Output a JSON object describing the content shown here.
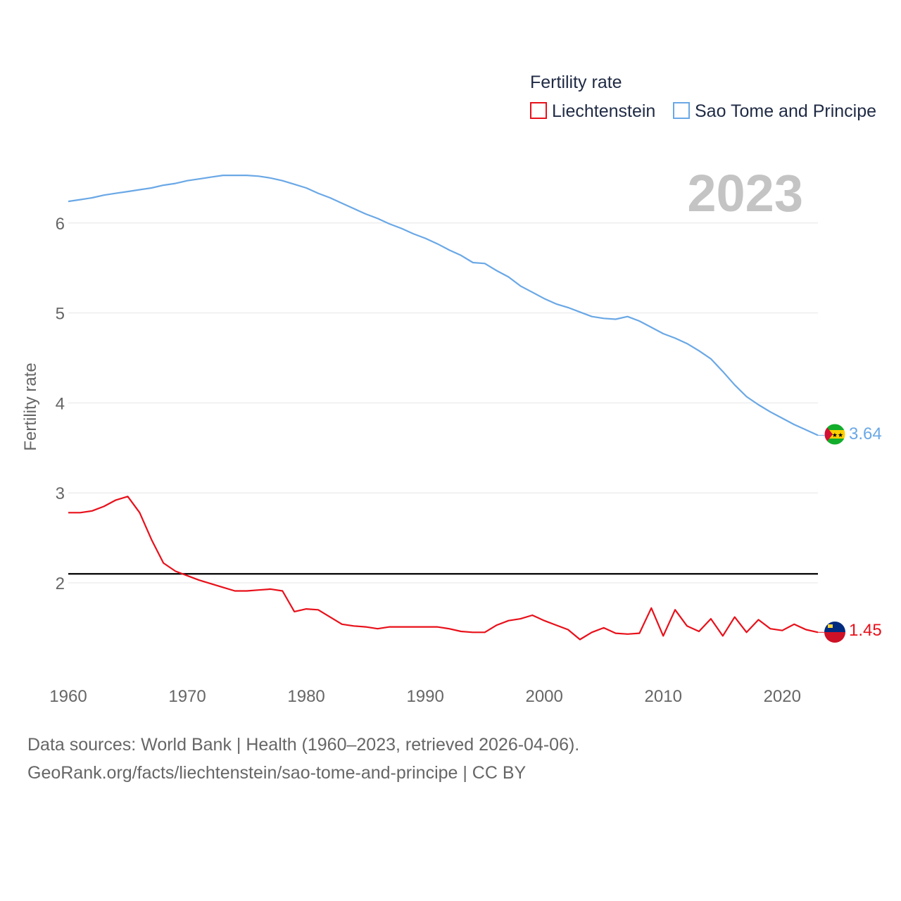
{
  "chart_data": {
    "type": "line",
    "legend_title": "Fertility rate",
    "ylabel": "Fertility rate",
    "xlabel": "",
    "year_label": "2023",
    "xlim": [
      1960,
      2023
    ],
    "ylim": [
      1,
      7
    ],
    "y_ticks": [
      2,
      3,
      4,
      5,
      6
    ],
    "x_ticks": [
      1960,
      1970,
      1980,
      1990,
      2000,
      2010,
      2020
    ],
    "grid": true,
    "legend_position": "top-right",
    "reference_line": {
      "value": 2.1,
      "color": "#000000"
    },
    "x": [
      1960,
      1961,
      1962,
      1963,
      1964,
      1965,
      1966,
      1967,
      1968,
      1969,
      1970,
      1971,
      1972,
      1973,
      1974,
      1975,
      1976,
      1977,
      1978,
      1979,
      1980,
      1981,
      1982,
      1983,
      1984,
      1985,
      1986,
      1987,
      1988,
      1989,
      1990,
      1991,
      1992,
      1993,
      1994,
      1995,
      1996,
      1997,
      1998,
      1999,
      2000,
      2001,
      2002,
      2003,
      2004,
      2005,
      2006,
      2007,
      2008,
      2009,
      2010,
      2011,
      2012,
      2013,
      2014,
      2015,
      2016,
      2017,
      2018,
      2019,
      2020,
      2021,
      2022,
      2023
    ],
    "series": [
      {
        "name": "Liechtenstein",
        "color": "#e8101a",
        "end_label": "1.45",
        "values": [
          2.78,
          2.78,
          2.8,
          2.85,
          2.92,
          2.96,
          2.78,
          2.48,
          2.22,
          2.13,
          2.08,
          2.03,
          1.99,
          1.95,
          1.91,
          1.91,
          1.92,
          1.93,
          1.91,
          1.68,
          1.71,
          1.7,
          1.62,
          1.54,
          1.52,
          1.51,
          1.49,
          1.51,
          1.51,
          1.51,
          1.51,
          1.51,
          1.49,
          1.46,
          1.45,
          1.45,
          1.53,
          1.58,
          1.6,
          1.64,
          1.58,
          1.53,
          1.48,
          1.37,
          1.45,
          1.5,
          1.44,
          1.43,
          1.44,
          1.72,
          1.41,
          1.7,
          1.52,
          1.46,
          1.6,
          1.41,
          1.62,
          1.45,
          1.59,
          1.49,
          1.47,
          1.54,
          1.48,
          1.45
        ]
      },
      {
        "name": "Sao Tome and Principe",
        "color": "#6aa8e6",
        "end_label": "3.64",
        "values": [
          6.24,
          6.26,
          6.28,
          6.31,
          6.33,
          6.35,
          6.37,
          6.39,
          6.42,
          6.44,
          6.47,
          6.49,
          6.51,
          6.53,
          6.53,
          6.53,
          6.52,
          6.5,
          6.47,
          6.43,
          6.39,
          6.33,
          6.28,
          6.22,
          6.16,
          6.1,
          6.05,
          5.99,
          5.94,
          5.88,
          5.83,
          5.77,
          5.7,
          5.64,
          5.56,
          5.55,
          5.47,
          5.4,
          5.3,
          5.23,
          5.16,
          5.1,
          5.06,
          5.01,
          4.96,
          4.94,
          4.93,
          4.96,
          4.91,
          4.84,
          4.77,
          4.72,
          4.66,
          4.58,
          4.49,
          4.35,
          4.2,
          4.07,
          3.98,
          3.9,
          3.83,
          3.76,
          3.7,
          3.64
        ]
      }
    ]
  },
  "footer": {
    "line1": "Data sources: World Bank | Health (1960–2023, retrieved 2026-04-06).",
    "line2": "GeoRank.org/facts/liechtenstein/sao-tome-and-principe | CC BY"
  }
}
